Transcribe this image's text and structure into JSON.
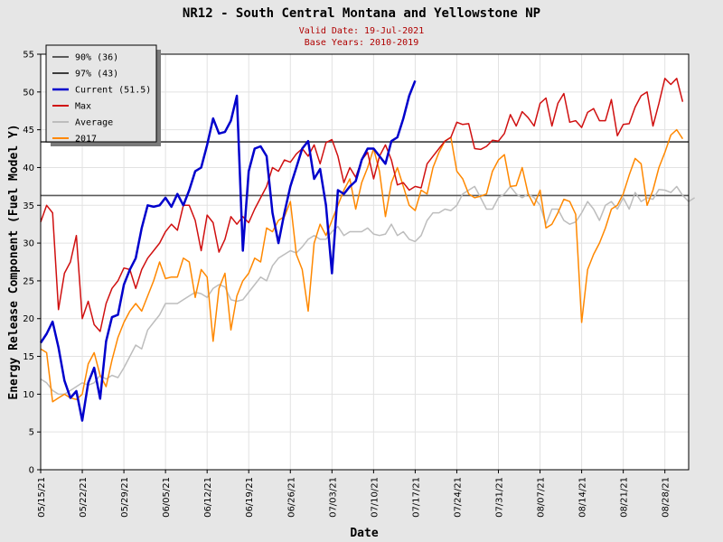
{
  "chart_data": {
    "type": "line",
    "title": "NR12 - South Central Montana and Yellowstone NP",
    "subtitle_lines": [
      "Valid Date: 19-Jul-2021",
      "Base Years: 2010-2019"
    ],
    "xlabel": "Date",
    "ylabel": "Energy Release Component (Fuel Model Y)",
    "xlim": [
      "2021-05-15",
      "2021-09-01"
    ],
    "ylim": [
      0,
      55
    ],
    "yticks": [
      0,
      5,
      10,
      15,
      20,
      25,
      30,
      35,
      40,
      45,
      50,
      55
    ],
    "xticks": [
      "05/15/21",
      "05/22/21",
      "05/29/21",
      "06/05/21",
      "06/12/21",
      "06/19/21",
      "06/26/21",
      "07/03/21",
      "07/10/21",
      "07/17/21",
      "07/24/21",
      "07/31/21",
      "08/07/21",
      "08/14/21",
      "08/21/21",
      "08/28/21"
    ],
    "grid": true,
    "legend_position": "top-left",
    "reference_lines": [
      {
        "name": "90% (36)",
        "y": 36.3,
        "color": "#5a5a5a"
      },
      {
        "name": "97% (43)",
        "y": 43.4,
        "color": "#3c3c3c"
      }
    ],
    "series": [
      {
        "name": "Current (51.5)",
        "color": "#0000cc",
        "start": "2021-05-15",
        "values": [
          16.8,
          18,
          19.6,
          16.2,
          11.8,
          9.5,
          10.4,
          6.5,
          11.5,
          13.5,
          9.4,
          17,
          20.2,
          20.5,
          24.5,
          26.5,
          28,
          32,
          35,
          34.8,
          35,
          36,
          34.8,
          36.5,
          35,
          37,
          39.5,
          40,
          43,
          46.5,
          44.5,
          44.7,
          46.2,
          49.5,
          29,
          39.5,
          42.5,
          42.8,
          41.5,
          34,
          30,
          34,
          37.5,
          40,
          42.5,
          43.5,
          38.5,
          39.8,
          35,
          26,
          37,
          36.5,
          37.5,
          38.2,
          41,
          42.5,
          42.5,
          41.5,
          40.5,
          43.5,
          44,
          46.5,
          49.5,
          51.5
        ]
      },
      {
        "name": "Max",
        "color": "#d01010",
        "start": "2021-05-15",
        "values": [
          32.8,
          35,
          34,
          21.2,
          26,
          27.5,
          31,
          20,
          22.3,
          19.2,
          18.3,
          22,
          24,
          25,
          26.7,
          26.5,
          24,
          26.5,
          28,
          29,
          30,
          31.5,
          32.5,
          31.7,
          35,
          35,
          33,
          29,
          33.7,
          32.7,
          28.8,
          30.5,
          33.5,
          32.5,
          33.5,
          32.7,
          34.5,
          36,
          37.5,
          40,
          39.5,
          41,
          40.7,
          41.8,
          42.5,
          41.5,
          43,
          40.5,
          43.3,
          43.7,
          41.5,
          38,
          40,
          38.7,
          41,
          42,
          38.5,
          41.5,
          43,
          41,
          37.7,
          38,
          37,
          37.5,
          37.3,
          40.5,
          41.5,
          42.5,
          43.5,
          44,
          46,
          45.7,
          45.8,
          42.5,
          42.4,
          42.8,
          43.6,
          43.5,
          44.5,
          47,
          45.5,
          47.4,
          46.6,
          45.5,
          48.5,
          49.2,
          45.5,
          48.5,
          49.8,
          46,
          46.2,
          45.3,
          47.3,
          47.8,
          46.2,
          46.2,
          49,
          44.2,
          45.7,
          45.8,
          48,
          49.5,
          50,
          45.5,
          48.5,
          51.8,
          51,
          51.8,
          48.7
        ]
      },
      {
        "name": "Average",
        "color": "#bdbdbd",
        "start": "2021-05-15",
        "values": [
          12,
          11.5,
          10.5,
          10,
          10,
          10.5,
          11,
          11.5,
          11.2,
          11.5,
          12.5,
          12,
          12.5,
          12.2,
          13.5,
          15,
          16.5,
          16,
          18.5,
          19.5,
          20.5,
          22,
          22,
          22,
          22.5,
          23,
          23.5,
          23.3,
          22.8,
          24,
          24.5,
          24.2,
          22.5,
          22.3,
          22.5,
          23.5,
          24.5,
          25.5,
          25,
          27,
          28,
          28.5,
          29,
          28.7,
          29.5,
          30.5,
          31,
          30.5,
          30.5,
          31.5,
          32.2,
          31,
          31.5,
          31.5,
          31.5,
          32,
          31.2,
          31,
          31.2,
          32.5,
          31,
          31.5,
          30.5,
          30.2,
          31,
          33,
          34,
          34,
          34.5,
          34.3,
          35,
          36.5,
          37,
          37.5,
          36,
          34.5,
          34.5,
          36,
          36.5,
          37.5,
          36.5,
          36,
          36.5,
          36,
          35,
          32.5,
          34.5,
          34.5,
          33,
          32.5,
          32.8,
          34,
          35.5,
          34.5,
          33,
          35,
          35.5,
          34.5,
          36,
          34.5,
          36.7,
          35.5,
          36,
          35.8,
          37.1,
          37,
          36.7,
          37.5,
          36.3,
          35.5,
          36
        ]
      },
      {
        "name": "2017",
        "color": "#ff8800",
        "start": "2021-05-15",
        "values": [
          16,
          15.5,
          9,
          9.5,
          10,
          9.5,
          9.3,
          10,
          14,
          15.5,
          12.5,
          11,
          14.5,
          17.5,
          19.5,
          21,
          22,
          21,
          23,
          25,
          27.5,
          25.3,
          25.5,
          25.5,
          28,
          27.5,
          22.8,
          26.5,
          25.5,
          17,
          24,
          26,
          18.5,
          23,
          25,
          26,
          28,
          27.5,
          32,
          31.5,
          33,
          33.5,
          35.5,
          28.5,
          26.5,
          21,
          30,
          32.5,
          31,
          33,
          35,
          37,
          38.5,
          34.5,
          38,
          40,
          42.5,
          39.5,
          33.5,
          38,
          40,
          37.5,
          35,
          34.3,
          37,
          36.5,
          40,
          42,
          43.5,
          44,
          39.5,
          38.5,
          36.5,
          36,
          36.2,
          36.5,
          39.5,
          41,
          41.7,
          37.5,
          37.6,
          40,
          36.5,
          35,
          37,
          32,
          32.5,
          34,
          35.8,
          35.5,
          33.8,
          19.5,
          26.5,
          28.5,
          30,
          32,
          34.5,
          35,
          36.5,
          39,
          41.2,
          40.5,
          35,
          37,
          40,
          42,
          44.3,
          45,
          43.8
        ]
      }
    ]
  }
}
